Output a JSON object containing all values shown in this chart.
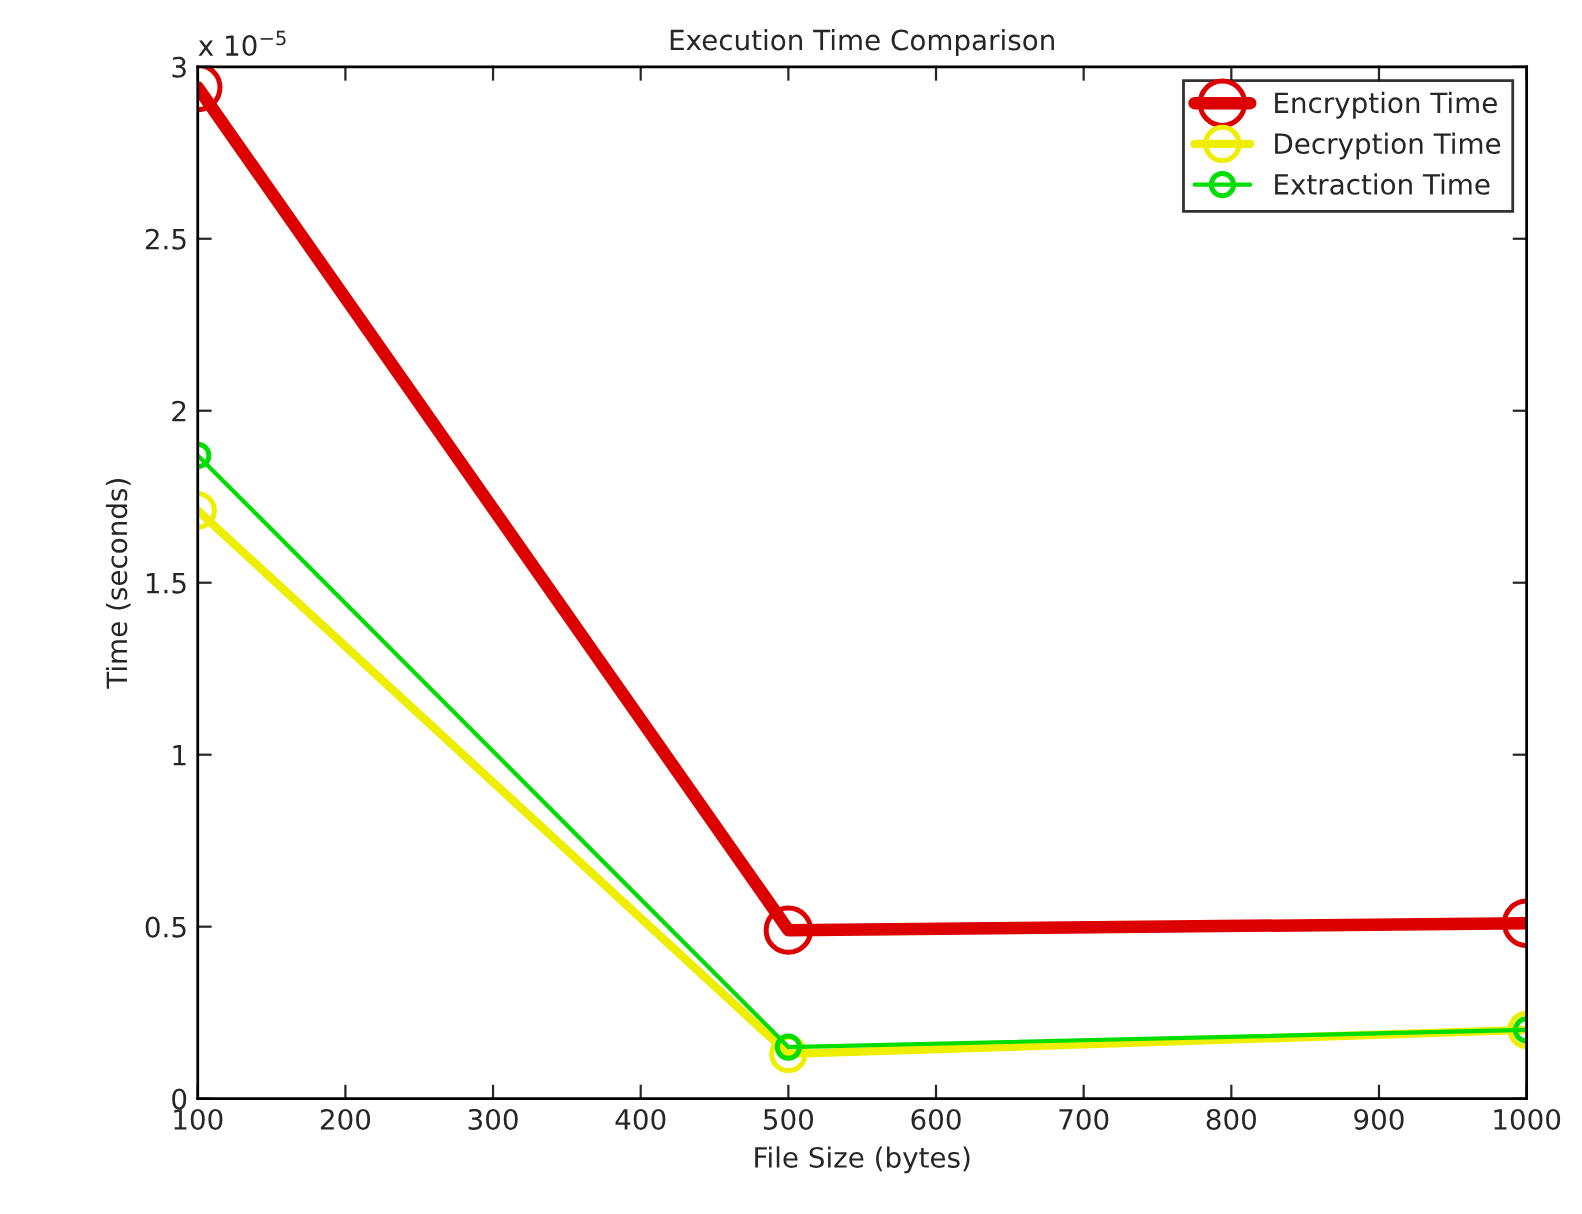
{
  "chart_data": {
    "type": "line",
    "title": "Execution Time Comparison",
    "xlabel": "File Size (bytes)",
    "ylabel": "Time (seconds)",
    "annotations": [
      "x 10$^{−5}$"
    ],
    "x": [
      100,
      500,
      1000
    ],
    "series": [
      {
        "name": "Encryption Time",
        "color": "#dd0000",
        "values": [
          2.94,
          0.49,
          0.51
        ]
      },
      {
        "name": "Decryption Time",
        "color": "#eeee00",
        "values": [
          1.71,
          0.13,
          0.2
        ]
      },
      {
        "name": "Extraction Time",
        "color": "#00dd00",
        "values": [
          1.87,
          0.15,
          0.2
        ]
      }
    ],
    "xlim": [
      100,
      1000
    ],
    "xticks": [
      100,
      200,
      300,
      400,
      500,
      600,
      700,
      800,
      900,
      1000
    ],
    "ylim": [
      0,
      3
    ],
    "yticks": [
      0,
      0.5,
      1,
      1.5,
      2,
      2.5,
      3
    ],
    "grid": false,
    "legend": "top right",
    "marker": "circle",
    "line_style": "solid"
  }
}
